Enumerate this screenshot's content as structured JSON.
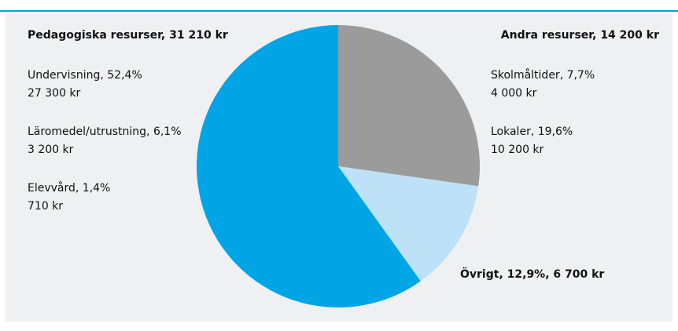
{
  "chart_data": {
    "type": "pie",
    "slices": [
      {
        "label": "Andra resurser, 14 200 kr",
        "value": 14200,
        "color": "#9b9b9b"
      },
      {
        "label": "Övrigt, 12,9%, 6 700 kr",
        "value": 6700,
        "color": "#bde1f6"
      },
      {
        "label": "Pedagogiska resurser, 31 210 kr",
        "value": 31210,
        "color": "#00a5e6"
      }
    ],
    "details": {
      "left": [
        [
          "Undervisning, 52,4%",
          "27 300 kr"
        ],
        [
          "Läromedel/utrustning, 6,1%",
          "3 200 kr"
        ],
        [
          "Elevvård, 1,4%",
          "710 kr"
        ]
      ],
      "right": [
        [
          "Skolmåltider, 7,7%",
          "4 000 kr"
        ],
        [
          "Lokaler, 19,6%",
          "10 200 kr"
        ]
      ]
    }
  }
}
